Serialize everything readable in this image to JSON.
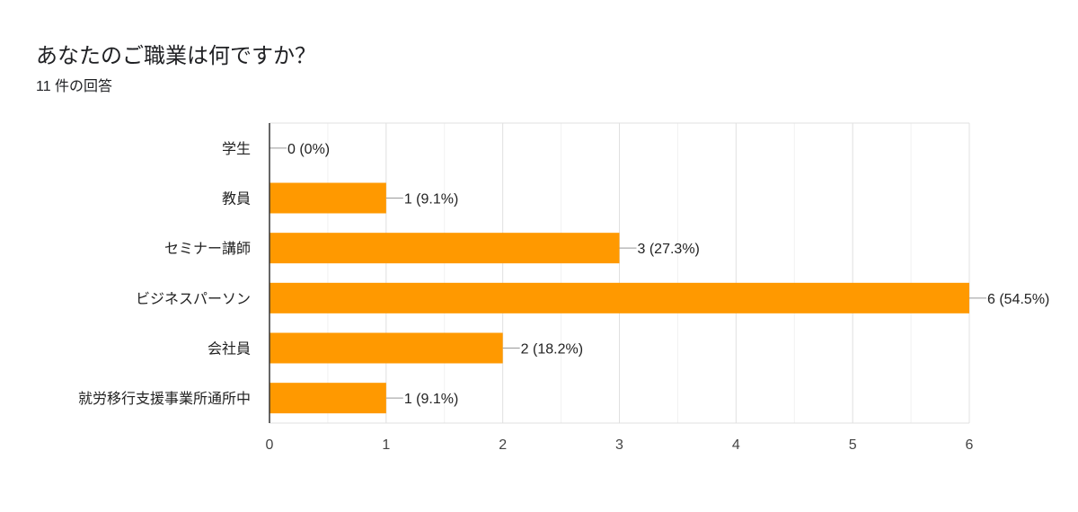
{
  "title": "あなたのご職業は何ですか？",
  "subtitle": "11 件の回答",
  "chart_data": {
    "type": "bar",
    "orientation": "horizontal",
    "categories": [
      "学生",
      "教員",
      "セミナー講師",
      "ビジネスパーソン",
      "会社員",
      "就労移行支援事業所通所中"
    ],
    "values": [
      0,
      1,
      3,
      6,
      2,
      1
    ],
    "data_labels": [
      "0 (0%)",
      "1 (9.1%)",
      "3 (27.3%)",
      "6 (54.5%)",
      "2 (18.2%)",
      "1 (9.1%)"
    ],
    "xlim": [
      0,
      6
    ],
    "xticks": [
      "0",
      "1",
      "2",
      "3",
      "4",
      "5",
      "6"
    ],
    "grid": true,
    "bar_color": "#ff9900"
  }
}
